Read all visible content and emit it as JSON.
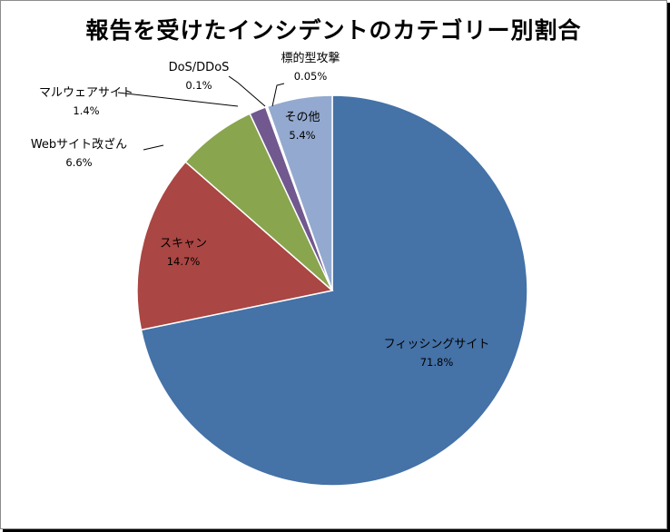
{
  "chart_data": {
    "type": "pie",
    "title": "報告を受けたインシデントのカテゴリー別割合",
    "slices": [
      {
        "label": "フィッシングサイト",
        "value": 71.8,
        "pct": "71.8%",
        "color": "#4572a7"
      },
      {
        "label": "スキャン",
        "value": 14.7,
        "pct": "14.7%",
        "color": "#aa4643"
      },
      {
        "label": "Webサイト改ざん",
        "value": 6.6,
        "pct": "6.6%",
        "color": "#89a54e"
      },
      {
        "label": "マルウェアサイト",
        "value": 1.4,
        "pct": "1.4%",
        "color": "#71588f"
      },
      {
        "label": "DoS/DDoS",
        "value": 0.1,
        "pct": "0.1%",
        "color": "#4198af"
      },
      {
        "label": "標的型攻撃",
        "value": 0.05,
        "pct": "0.05%",
        "color": "#db843d"
      },
      {
        "label": "その他",
        "value": 5.4,
        "pct": "5.4%",
        "color": "#93a9cf"
      }
    ],
    "start_angle_deg": 0,
    "direction": "clockwise",
    "legend": "none"
  }
}
